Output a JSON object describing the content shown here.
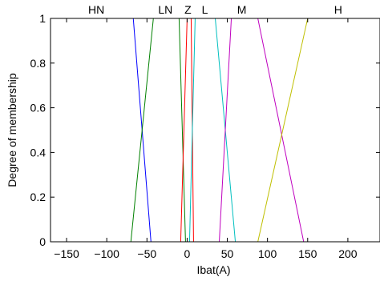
{
  "chart_data": {
    "type": "line",
    "title": "",
    "xlabel": "Ibat(A)",
    "ylabel": "Degree of membership",
    "xlim": [
      -170,
      240
    ],
    "ylim": [
      0,
      1
    ],
    "x_ticks": [
      -150,
      -100,
      -50,
      0,
      50,
      100,
      150,
      200
    ],
    "x_tick_labels": [
      "−150",
      "−100",
      "−50",
      "0",
      "50",
      "100",
      "150",
      "200"
    ],
    "y_ticks": [
      0,
      0.2,
      0.4,
      0.6,
      0.8,
      1
    ],
    "y_tick_labels": [
      "0",
      "0.2",
      "0.4",
      "0.6",
      "0.8",
      "1"
    ],
    "grid": false,
    "series": [
      {
        "name": "HN",
        "color": "#0000ff",
        "label_x": -113,
        "points": [
          [
            -170,
            1
          ],
          [
            -67,
            1
          ],
          [
            -45,
            0
          ],
          [
            240,
            0
          ]
        ]
      },
      {
        "name": "LN",
        "color": "#008000",
        "label_x": -27,
        "points": [
          [
            -170,
            0
          ],
          [
            -70,
            0
          ],
          [
            -42,
            1
          ],
          [
            -10,
            1
          ],
          [
            -2,
            0
          ],
          [
            240,
            0
          ]
        ]
      },
      {
        "name": "Z",
        "color": "#ff0000",
        "label_x": 1,
        "points": [
          [
            -170,
            0
          ],
          [
            -8,
            0
          ],
          [
            0,
            1
          ],
          [
            5,
            1
          ],
          [
            8,
            0
          ],
          [
            240,
            0
          ]
        ]
      },
      {
        "name": "L",
        "color": "#00bfbf",
        "label_x": 22,
        "points": [
          [
            -170,
            0
          ],
          [
            3,
            0
          ],
          [
            10,
            1
          ],
          [
            35,
            1
          ],
          [
            60,
            0
          ],
          [
            240,
            0
          ]
        ]
      },
      {
        "name": "M",
        "color": "#bf00bf",
        "label_x": 68,
        "points": [
          [
            -170,
            0
          ],
          [
            40,
            0
          ],
          [
            55,
            1
          ],
          [
            88,
            1
          ],
          [
            145,
            0
          ],
          [
            240,
            0
          ]
        ]
      },
      {
        "name": "H",
        "color": "#bfbf00",
        "label_x": 188,
        "points": [
          [
            -170,
            0
          ],
          [
            88,
            0
          ],
          [
            150,
            1
          ],
          [
            240,
            1
          ]
        ]
      }
    ]
  }
}
